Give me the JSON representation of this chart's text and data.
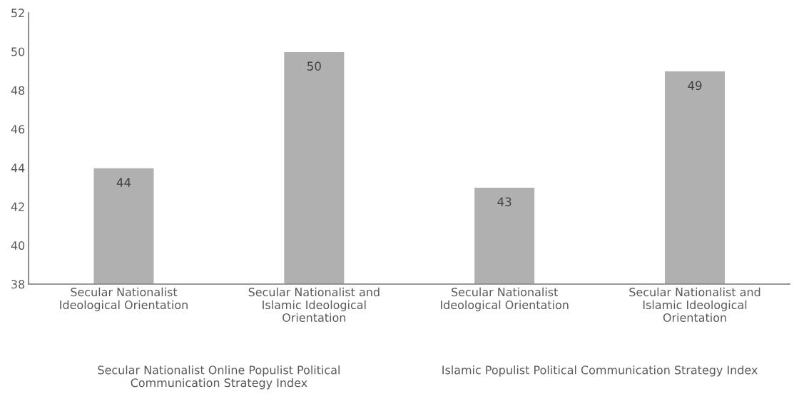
{
  "chart_data": {
    "type": "bar",
    "categories": [
      "Secular Nationalist\nIdeological Orientation",
      "Secular Nationalist and\nIslamic Ideological\nOrientation",
      "Secular Nationalist\nIdeological Orientation",
      "Secular Nationalist and\nIslamic Ideological\nOrientation"
    ],
    "values": [
      44,
      50,
      43,
      49
    ],
    "color": "#b0b0b0",
    "ylim": [
      38,
      52
    ],
    "yticks": [
      38,
      40,
      42,
      44,
      46,
      48,
      50,
      52
    ],
    "data_labels": true,
    "grid": false,
    "legend": false,
    "annotations": [
      "Secular Nationalist Online Populist Political\nCommunication Strategy Index",
      "Islamic Populist Political Communication Strategy Index"
    ]
  }
}
